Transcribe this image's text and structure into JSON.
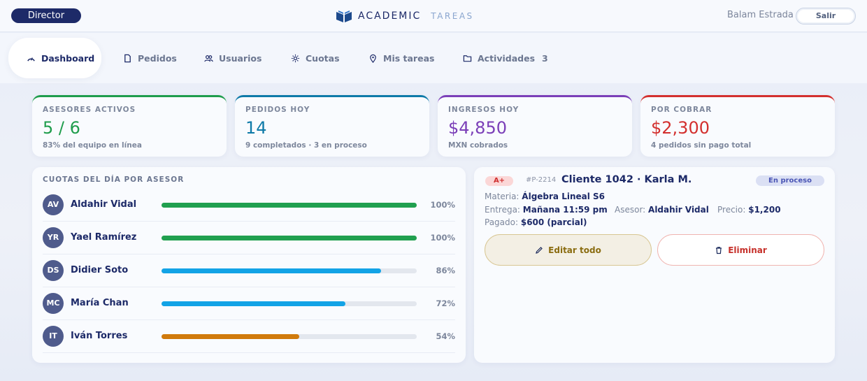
{
  "header": {
    "role_label": "Director",
    "brand_primary": "ACADEMIC",
    "brand_secondary": "TAREAS",
    "user_name": "Balam Estrada",
    "logout_label": "Salir"
  },
  "nav": {
    "tabs": [
      {
        "label": "Dashboard",
        "icon": "gauge-icon"
      },
      {
        "label": "Pedidos",
        "icon": "document-icon"
      },
      {
        "label": "Usuarios",
        "icon": "users-icon"
      },
      {
        "label": "Cuotas",
        "icon": "sun-icon"
      },
      {
        "label": "Mis tareas",
        "icon": "map-pin-icon"
      },
      {
        "label": "Actividades",
        "icon": "folder-icon",
        "badge": "3"
      }
    ]
  },
  "stats": [
    {
      "label": "ASESORES ACTIVOS",
      "value": "5 / 6",
      "sub": "83% del equipo en línea",
      "color": "#1f9d4c"
    },
    {
      "label": "PEDIDOS HOY",
      "value": "14",
      "sub": "9 completados · 3 en proceso",
      "color": "#0e7aa8"
    },
    {
      "label": "INGRESOS HOY",
      "value": "$4,850",
      "sub": "MXN cobrados",
      "color": "#7b3fb8"
    },
    {
      "label": "POR COBRAR",
      "value": "$2,300",
      "sub": "4 pedidos sin pago total",
      "color": "#d3302e"
    }
  ],
  "quotas": {
    "title": "CUOTAS DEL DÍA POR ASESOR",
    "rows": [
      {
        "initials": "AV",
        "name": "Aldahir Vidal",
        "pct_label": "100%",
        "progress": 1.0,
        "color": "#21a04f"
      },
      {
        "initials": "YR",
        "name": "Yael Ramírez",
        "pct_label": "100%",
        "progress": 1.0,
        "color": "#21a04f"
      },
      {
        "initials": "DS",
        "name": "Didier Soto",
        "pct_label": "86%",
        "progress": 0.86,
        "color": "#13a3e6"
      },
      {
        "initials": "MC",
        "name": "María Chan",
        "pct_label": "72%",
        "progress": 0.72,
        "color": "#13a3e6"
      },
      {
        "initials": "IT",
        "name": "Iván Torres",
        "pct_label": "54%",
        "progress": 0.54,
        "color": "#d07a0c"
      }
    ]
  },
  "order": {
    "grade": "A+",
    "id": "#P-2214",
    "client": "Cliente 1042 · Karla M.",
    "status": "En proceso",
    "materia_label": "Materia:",
    "materia": "Álgebra Lineal S6",
    "entrega_label": "Entrega:",
    "entrega": "Mañana 11:59 pm",
    "asesor_label": "Asesor:",
    "asesor": "Aldahir Vidal",
    "precio_label": "Precio:",
    "precio": "$1,200",
    "pagado_label": "Pagado:",
    "pagado": "$600 (parcial)",
    "edit_label": "Editar todo",
    "delete_label": "Eliminar"
  }
}
